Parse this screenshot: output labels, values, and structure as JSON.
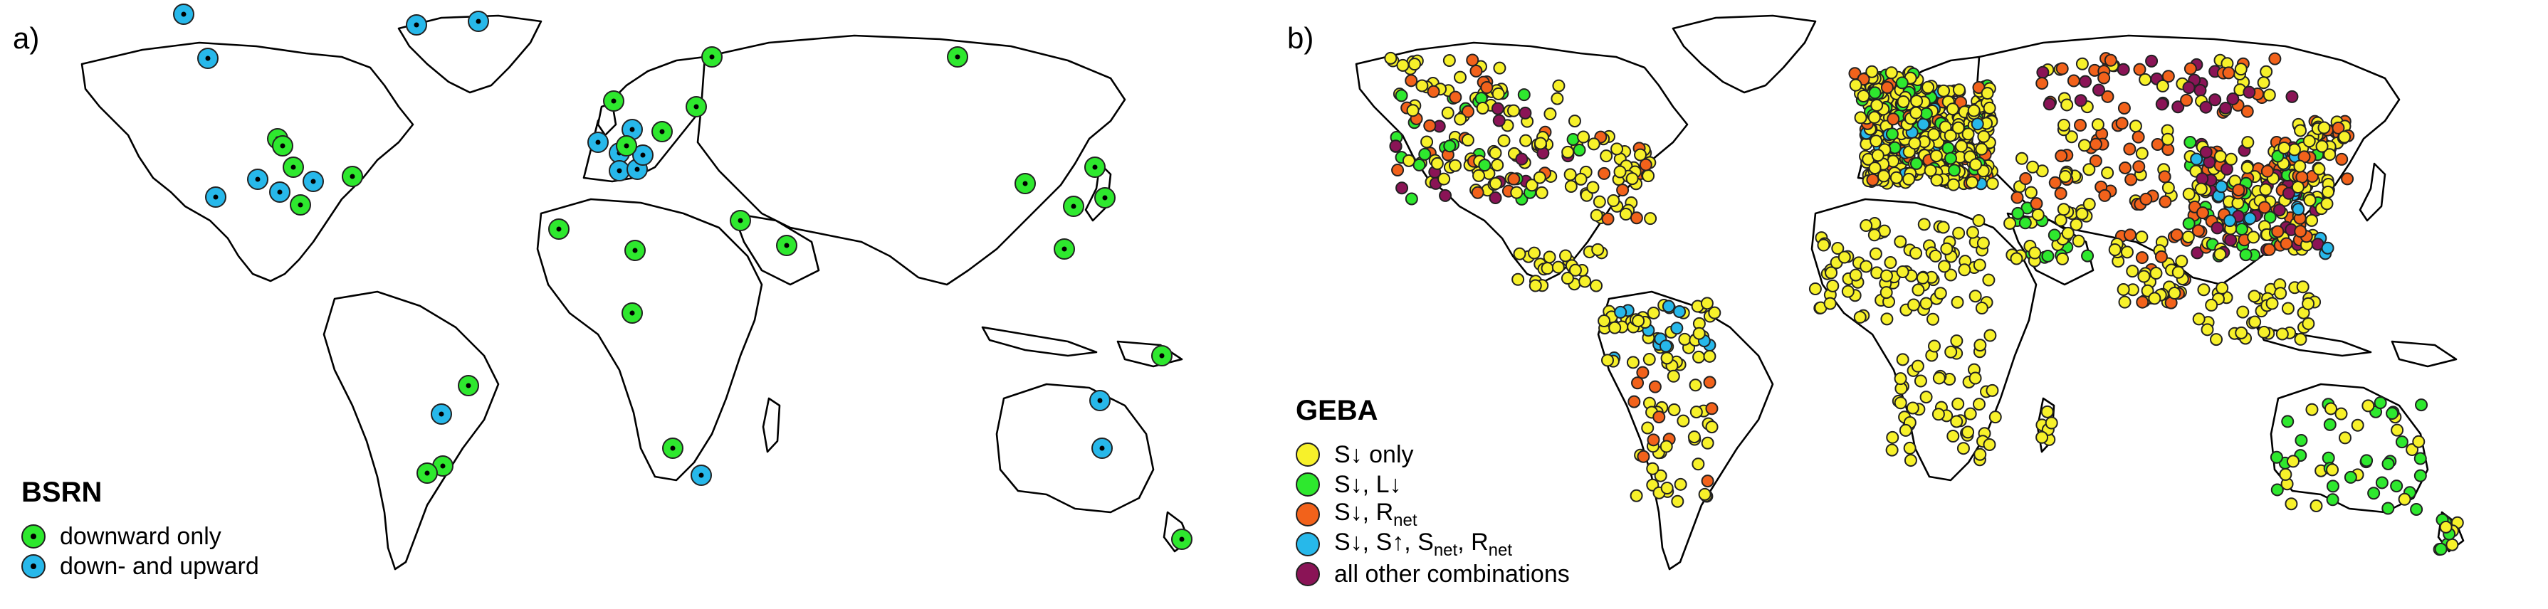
{
  "panel_a": {
    "letter": "a)",
    "legend": {
      "title": "BSRN",
      "items": [
        {
          "label": "downward only",
          "color": "#2ee82e"
        },
        {
          "label": "down- and upward",
          "color": "#27b8ea"
        }
      ]
    }
  },
  "panel_b": {
    "letter": "b)",
    "legend": {
      "title": "GEBA",
      "items": [
        {
          "text": "S↓ only",
          "color": "#f7f12a"
        },
        {
          "text": "S↓, L↓",
          "color": "#2ee82e"
        },
        {
          "text": "S↓, R",
          "sub": "net",
          "color": "#f2621b"
        },
        {
          "text": "S↓, S↑, S",
          "sub": "net",
          "text2": ", R",
          "sub2": "net",
          "color": "#27b8ea"
        },
        {
          "text": "all other combinations",
          "color": "#8a1456"
        }
      ]
    }
  }
}
